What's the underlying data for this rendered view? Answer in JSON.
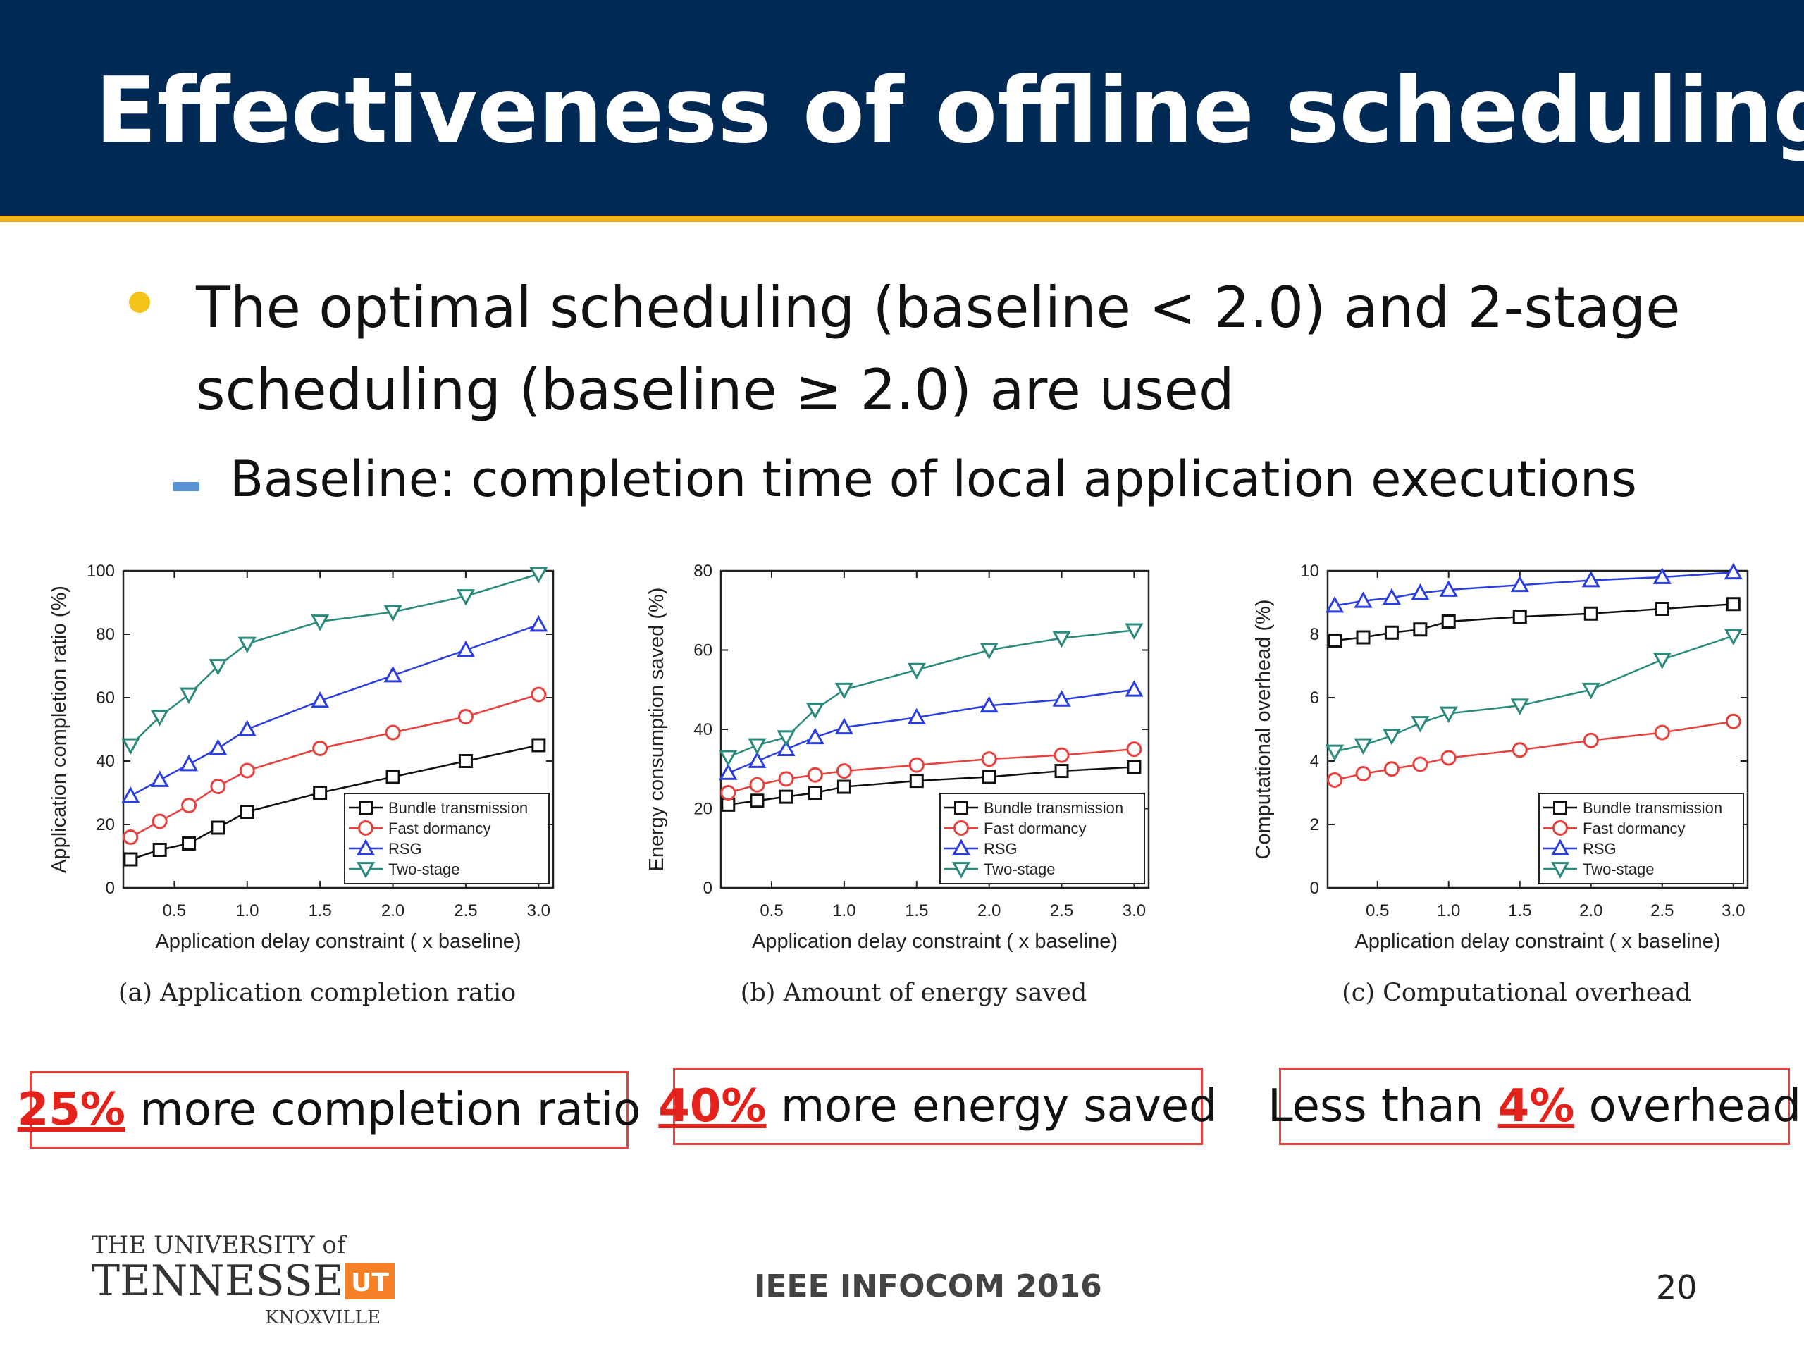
{
  "slide": {
    "title": "Effectiveness of offline scheduling",
    "bullet": "The optimal scheduling (baseline < 2.0) and 2-stage scheduling (baseline ≥ 2.0) are used",
    "sub_bullet": "Baseline: completion time of local application executions",
    "footer": "IEEE INFOCOM 2016",
    "page_number": "20",
    "logo": {
      "line1": "THE UNIVERSITY of",
      "line2": "TENNESSEE",
      "line3": "KNOXVILLE",
      "mark": "UT"
    }
  },
  "colors": {
    "header": "#002a53",
    "accent_bar": "#f0b41e",
    "bullet": "#f3c319",
    "dash": "#5a93d3",
    "highlight": "#e3221c",
    "logo_orange": "#f58025"
  },
  "annotations": [
    {
      "highlight": "25%",
      "text": " more completion ratio",
      "prefix": ""
    },
    {
      "highlight": "40%",
      "text": " more energy saved",
      "prefix": ""
    },
    {
      "prefix": "Less than ",
      "highlight": "4%",
      "text": " overhead"
    }
  ],
  "chart_data": [
    {
      "type": "line",
      "caption": "(a) Application completion ratio",
      "xlabel": "Application delay constraint ( x baseline)",
      "ylabel": "Application completion ratio (%)",
      "xlim": [
        0.15,
        3.1
      ],
      "ylim": [
        0,
        100
      ],
      "xticks": [
        0.5,
        1.0,
        1.5,
        2.0,
        2.5,
        3.0
      ],
      "yticks": [
        0,
        20,
        40,
        60,
        80,
        100
      ],
      "legend_position": "bottom-right",
      "x": [
        0.2,
        0.4,
        0.6,
        0.8,
        1.0,
        1.5,
        2.0,
        2.5,
        3.0
      ],
      "series": [
        {
          "name": "Bundle transmission",
          "marker": "square",
          "color": "#111111",
          "values": [
            9,
            12,
            14,
            19,
            24,
            30,
            35,
            40,
            45
          ]
        },
        {
          "name": "Fast dormancy",
          "marker": "circle",
          "color": "#e8403c",
          "values": [
            16,
            21,
            26,
            32,
            37,
            44,
            49,
            54,
            61
          ]
        },
        {
          "name": "RSG",
          "marker": "triangle-up",
          "color": "#2b3fe0",
          "values": [
            29,
            34,
            39,
            44,
            50,
            59,
            67,
            75,
            83
          ]
        },
        {
          "name": "Two-stage",
          "marker": "triangle-down",
          "color": "#2a8a7c",
          "values": [
            45,
            54,
            61,
            70,
            77,
            84,
            87,
            92,
            99
          ]
        }
      ]
    },
    {
      "type": "line",
      "caption": "(b) Amount of energy saved",
      "xlabel": "Application delay constraint ( x baseline)",
      "ylabel": "Energy consumption saved (%)",
      "xlim": [
        0.15,
        3.1
      ],
      "ylim": [
        0,
        80
      ],
      "xticks": [
        0.5,
        1.0,
        1.5,
        2.0,
        2.5,
        3.0
      ],
      "yticks": [
        0,
        20,
        40,
        60,
        80
      ],
      "legend_position": "bottom-right",
      "x": [
        0.2,
        0.4,
        0.6,
        0.8,
        1.0,
        1.5,
        2.0,
        2.5,
        3.0
      ],
      "series": [
        {
          "name": "Bundle transmission",
          "marker": "square",
          "color": "#111111",
          "values": [
            21,
            22,
            23,
            24,
            25.5,
            27,
            28,
            29.5,
            30.5
          ]
        },
        {
          "name": "Fast dormancy",
          "marker": "circle",
          "color": "#e8403c",
          "values": [
            24,
            26,
            27.5,
            28.5,
            29.5,
            31,
            32.5,
            33.5,
            35
          ]
        },
        {
          "name": "RSG",
          "marker": "triangle-up",
          "color": "#2b3fe0",
          "values": [
            29,
            32,
            35,
            38,
            40.5,
            43,
            46,
            47.5,
            50
          ]
        },
        {
          "name": "Two-stage",
          "marker": "triangle-down",
          "color": "#2a8a7c",
          "values": [
            33,
            36,
            38,
            45,
            50,
            55,
            60,
            63,
            65
          ]
        }
      ]
    },
    {
      "type": "line",
      "caption": "(c) Computational overhead",
      "xlabel": "Application delay constraint ( x baseline)",
      "ylabel": "Computational overhead (%)",
      "xlim": [
        0.15,
        3.1
      ],
      "ylim": [
        0,
        10
      ],
      "xticks": [
        0.5,
        1.0,
        1.5,
        2.0,
        2.5,
        3.0
      ],
      "yticks": [
        0,
        2,
        4,
        6,
        8,
        10
      ],
      "legend_position": "bottom-right",
      "x": [
        0.2,
        0.4,
        0.6,
        0.8,
        1.0,
        1.5,
        2.0,
        2.5,
        3.0
      ],
      "series": [
        {
          "name": "Bundle transmission",
          "marker": "square",
          "color": "#111111",
          "values": [
            7.8,
            7.9,
            8.05,
            8.15,
            8.4,
            8.55,
            8.65,
            8.8,
            8.95
          ]
        },
        {
          "name": "Fast dormancy",
          "marker": "circle",
          "color": "#e8403c",
          "values": [
            3.4,
            3.6,
            3.75,
            3.9,
            4.1,
            4.35,
            4.65,
            4.9,
            5.25
          ]
        },
        {
          "name": "RSG",
          "marker": "triangle-up",
          "color": "#2b3fe0",
          "values": [
            8.9,
            9.05,
            9.15,
            9.3,
            9.4,
            9.55,
            9.7,
            9.8,
            9.95
          ]
        },
        {
          "name": "Two-stage",
          "marker": "triangle-down",
          "color": "#2a8a7c",
          "values": [
            4.3,
            4.5,
            4.8,
            5.2,
            5.5,
            5.75,
            6.25,
            7.2,
            7.95
          ]
        }
      ]
    }
  ]
}
